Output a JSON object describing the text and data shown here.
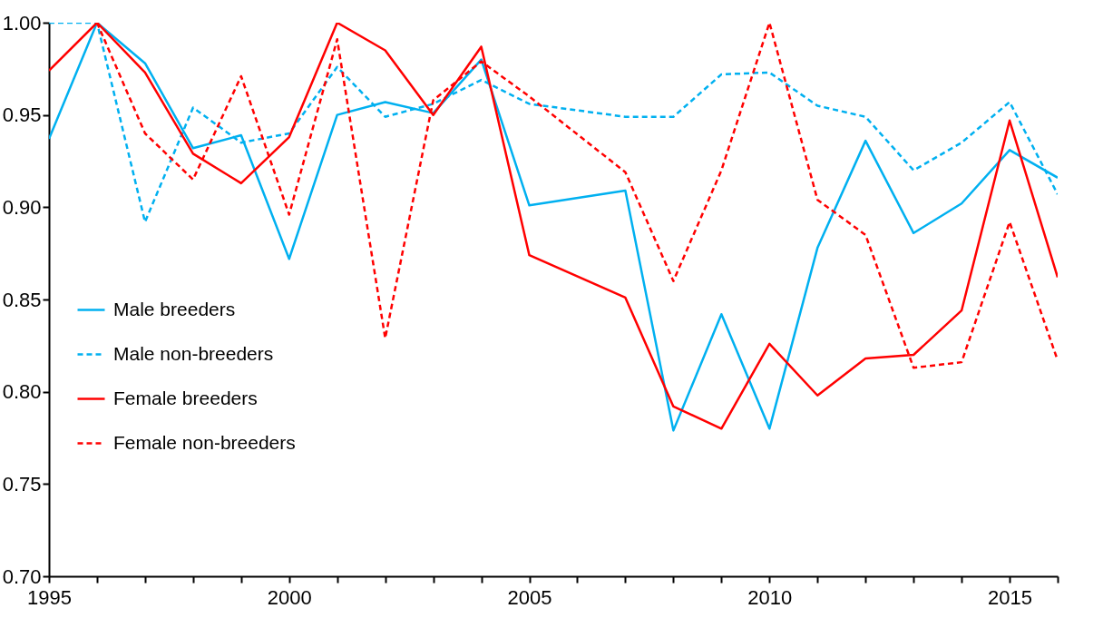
{
  "chart_data": {
    "type": "line",
    "xlim": [
      1995,
      2016
    ],
    "ylim": [
      0.7,
      1.0
    ],
    "xticks": [
      1995,
      {
        "value": 1996,
        "label": null
      },
      {
        "value": 1997,
        "label": null
      },
      {
        "value": 1998,
        "label": null
      },
      {
        "value": 1999,
        "label": null
      },
      2000,
      {
        "value": 2001,
        "label": null
      },
      {
        "value": 2002,
        "label": null
      },
      {
        "value": 2003,
        "label": null
      },
      {
        "value": 2004,
        "label": null
      },
      2005,
      {
        "value": 2006,
        "label": null
      },
      {
        "value": 2007,
        "label": null
      },
      {
        "value": 2008,
        "label": null
      },
      {
        "value": 2009,
        "label": null
      },
      2010,
      {
        "value": 2011,
        "label": null
      },
      {
        "value": 2012,
        "label": null
      },
      {
        "value": 2013,
        "label": null
      },
      {
        "value": 2014,
        "label": null
      },
      2015,
      {
        "value": 2016,
        "label": null
      }
    ],
    "yticks": [
      {
        "value": 0.7,
        "label": "0.70"
      },
      0.75,
      {
        "value": 0.8,
        "label": "0.80"
      },
      0.85,
      {
        "value": 0.9,
        "label": "0.90"
      },
      0.95,
      {
        "value": 1.0,
        "label": "1.00"
      }
    ],
    "grid": false,
    "legend": "bottom left",
    "marker": "none",
    "series": [
      {
        "name": "Male breeders",
        "color": "#00b0f0",
        "line_style": "solid",
        "x": [
          1995,
          1996,
          1997,
          1998,
          1999,
          2000,
          2001,
          2002,
          2003,
          2004,
          2005,
          2007,
          2008,
          2009,
          2010,
          2011,
          2012,
          2013,
          2014,
          2015,
          2016
        ],
        "values": [
          0.937,
          1.0,
          0.978,
          0.932,
          0.939,
          0.872,
          0.95,
          0.957,
          0.951,
          0.98,
          0.901,
          0.909,
          0.779,
          0.842,
          0.78,
          0.878,
          0.936,
          0.886,
          0.902,
          0.931,
          0.916
        ]
      },
      {
        "name": "Male non-breeders",
        "color": "#00b0f0",
        "line_style": "dashed",
        "x": [
          1995,
          1996,
          1997,
          1998,
          1999,
          2000,
          2001,
          2002,
          2003,
          2004,
          2005,
          2007,
          2008,
          2009,
          2010,
          2011,
          2012,
          2013,
          2014,
          2015,
          2016
        ],
        "values": [
          1.0,
          1.0,
          0.892,
          0.954,
          0.935,
          0.94,
          0.976,
          0.949,
          0.956,
          0.969,
          0.956,
          0.949,
          0.949,
          0.972,
          0.973,
          0.955,
          0.949,
          0.92,
          0.935,
          0.957,
          0.907
        ]
      },
      {
        "name": "Female breeders",
        "color": "#ff0000",
        "line_style": "solid",
        "x": [
          1995,
          1996,
          1997,
          1998,
          1999,
          2000,
          2001,
          2002,
          2003,
          2004,
          2005,
          2007,
          2008,
          2009,
          2010,
          2011,
          2012,
          2013,
          2014,
          2015,
          2016
        ],
        "values": [
          0.974,
          1.0,
          0.973,
          0.929,
          0.913,
          0.938,
          1.0,
          0.985,
          0.95,
          0.987,
          0.874,
          0.851,
          0.792,
          0.78,
          0.826,
          0.798,
          0.818,
          0.82,
          0.844,
          0.947,
          0.862
        ]
      },
      {
        "name": "Female non-breeders",
        "color": "#ff0000",
        "line_style": "dashed",
        "x": [
          1996,
          1997,
          1998,
          1999,
          2000,
          2001,
          2002,
          2003,
          2004,
          2005,
          2007,
          2008,
          2009,
          2010,
          2011,
          2012,
          2013,
          2014,
          2015,
          2016
        ],
        "values": [
          1.0,
          0.94,
          0.915,
          0.971,
          0.896,
          0.991,
          0.829,
          0.958,
          0.979,
          0.96,
          0.919,
          0.86,
          0.92,
          1.0,
          0.904,
          0.885,
          0.813,
          0.816,
          0.892,
          0.817
        ]
      }
    ]
  }
}
